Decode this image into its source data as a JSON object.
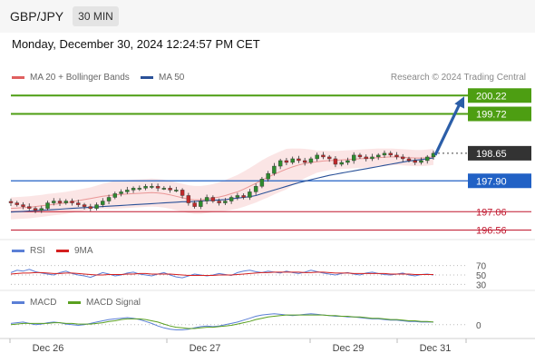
{
  "header": {
    "pair": "GBP/JPY",
    "timeframe": "30 MIN"
  },
  "datetime": "Monday, December 30, 2024 12:24:57 PM CET",
  "copyright": "Research © 2024 Trading Central",
  "colors": {
    "resistance": "#4d9e12",
    "pivot": "#2161c5",
    "support": "#c0162d",
    "current": "#333333",
    "arrow": "#2b5ea8",
    "ma50": "#2a5198",
    "ma20": "#e06060",
    "bands_fill": "#fadcdc",
    "rsi": "#5b7fd6",
    "rsi_ma": "#d42020",
    "macd": "#5b7fd6",
    "macd_signal": "#5aa020",
    "candle_up": "#2e8b2e",
    "candle_down": "#c0292b"
  },
  "chart_data": [
    {
      "type": "candlestick",
      "legend": {
        "ma20_label": "MA 20 + Bollinger Bands",
        "ma50_label": "MA 50"
      },
      "price_range": [
        196.45,
        200.35
      ],
      "levels": [
        {
          "value": "200.22",
          "price": 200.22,
          "role": "resistance"
        },
        {
          "value": "199.72",
          "price": 199.72,
          "role": "resistance"
        },
        {
          "value": "198.65",
          "price": 198.65,
          "role": "current"
        },
        {
          "value": "197.90",
          "price": 197.9,
          "role": "pivot"
        },
        {
          "value": "197.06",
          "price": 197.06,
          "role": "support"
        },
        {
          "value": "196.56",
          "price": 196.56,
          "role": "support"
        }
      ],
      "close": [
        197.3,
        197.25,
        197.2,
        197.15,
        197.1,
        197.15,
        197.3,
        197.35,
        197.3,
        197.35,
        197.3,
        197.25,
        197.2,
        197.15,
        197.25,
        197.35,
        197.45,
        197.55,
        197.6,
        197.65,
        197.7,
        197.7,
        197.75,
        197.75,
        197.7,
        197.7,
        197.65,
        197.65,
        197.5,
        197.3,
        197.2,
        197.35,
        197.45,
        197.35,
        197.3,
        197.35,
        197.45,
        197.5,
        197.45,
        197.6,
        197.75,
        197.95,
        198.1,
        198.3,
        198.45,
        198.4,
        198.5,
        198.45,
        198.4,
        198.5,
        198.6,
        198.55,
        198.5,
        198.35,
        198.4,
        198.45,
        198.6,
        198.55,
        198.5,
        198.55,
        198.6,
        198.65,
        198.6,
        198.55,
        198.5,
        198.45,
        198.4,
        198.45,
        198.55,
        198.65
      ],
      "ma50": [
        197.05,
        197.06,
        197.07,
        197.08,
        197.09,
        197.1,
        197.11,
        197.12,
        197.13,
        197.14,
        197.15,
        197.16,
        197.17,
        197.18,
        197.19,
        197.2,
        197.21,
        197.22,
        197.23,
        197.24,
        197.25,
        197.26,
        197.27,
        197.28,
        197.29,
        197.3,
        197.31,
        197.32,
        197.33,
        197.33,
        197.34,
        197.35,
        197.36,
        197.37,
        197.38,
        197.39,
        197.41,
        197.43,
        197.45,
        197.47,
        197.5,
        197.55,
        197.6,
        197.65,
        197.7,
        197.75,
        197.8,
        197.85,
        197.89,
        197.93,
        197.97,
        198.01,
        198.05,
        198.08,
        198.11,
        198.14,
        198.17,
        198.2,
        198.23,
        198.26,
        198.29,
        198.32,
        198.35,
        198.38,
        198.41,
        198.44,
        198.46,
        198.48,
        198.5,
        198.52
      ],
      "ma20": [
        197.15,
        197.16,
        197.17,
        197.18,
        197.2,
        197.22,
        197.24,
        197.26,
        197.28,
        197.3,
        197.33,
        197.36,
        197.39,
        197.42,
        197.45,
        197.48,
        197.5,
        197.52,
        197.53,
        197.54,
        197.55,
        197.56,
        197.57,
        197.58,
        197.57,
        197.55,
        197.52,
        197.48,
        197.44,
        197.4,
        197.38,
        197.38,
        197.4,
        197.43,
        197.46,
        197.5,
        197.55,
        197.6,
        197.67,
        197.75,
        197.83,
        197.92,
        198.0,
        198.08,
        198.15,
        198.22,
        198.28,
        198.33,
        198.37,
        198.4,
        198.42,
        198.44,
        198.45,
        198.46,
        198.47,
        198.48,
        198.49,
        198.5,
        198.51,
        198.52,
        198.53,
        198.54,
        198.55,
        198.55,
        198.54,
        198.53,
        198.52,
        198.52,
        198.53,
        198.55
      ],
      "band_width": [
        0.3,
        0.3,
        0.3,
        0.3,
        0.3,
        0.3,
        0.3,
        0.3,
        0.3,
        0.3,
        0.3,
        0.3,
        0.3,
        0.3,
        0.32,
        0.34,
        0.36,
        0.38,
        0.38,
        0.38,
        0.38,
        0.38,
        0.38,
        0.38,
        0.38,
        0.38,
        0.38,
        0.38,
        0.38,
        0.38,
        0.38,
        0.38,
        0.38,
        0.38,
        0.4,
        0.42,
        0.44,
        0.46,
        0.48,
        0.5,
        0.52,
        0.54,
        0.55,
        0.55,
        0.55,
        0.55,
        0.5,
        0.45,
        0.4,
        0.35,
        0.3,
        0.28,
        0.26,
        0.25,
        0.25,
        0.25,
        0.25,
        0.25,
        0.25,
        0.25,
        0.25,
        0.24,
        0.23,
        0.22,
        0.22,
        0.22,
        0.22,
        0.22,
        0.22,
        0.22
      ],
      "forecast_arrow": {
        "from_price": 198.65,
        "to_price": 200.22
      },
      "x_ticks": [
        "Dec 26",
        "Dec 27",
        "Dec 29",
        "Dec 31"
      ]
    },
    {
      "type": "line",
      "legend": {
        "rsi_label": "RSI",
        "ma_label": "9MA"
      },
      "ylim": [
        25,
        75
      ],
      "ticks": [
        "70",
        "50",
        "30"
      ],
      "rsi": [
        55,
        60,
        58,
        62,
        57,
        54,
        52,
        50,
        55,
        58,
        53,
        50,
        48,
        45,
        50,
        55,
        52,
        48,
        50,
        54,
        56,
        52,
        50,
        48,
        52,
        55,
        50,
        46,
        44,
        48,
        52,
        50,
        48,
        50,
        53,
        51,
        49,
        55,
        58,
        60,
        57,
        55,
        58,
        56,
        54,
        58,
        55,
        53,
        56,
        60,
        57,
        54,
        52,
        50,
        53,
        55,
        52,
        50,
        54,
        56,
        53,
        51,
        50,
        52,
        54,
        50,
        48,
        51,
        52,
        50
      ],
      "rsi_ma": [
        52,
        53,
        54,
        54,
        55,
        55,
        54,
        53,
        53,
        54,
        54,
        53,
        52,
        51,
        50,
        50,
        51,
        51,
        51,
        52,
        52,
        53,
        53,
        52,
        52,
        52,
        52,
        51,
        50,
        49,
        49,
        49,
        49,
        49,
        50,
        50,
        50,
        51,
        52,
        53,
        54,
        55,
        55,
        56,
        56,
        56,
        56,
        56,
        55,
        55,
        56,
        56,
        55,
        54,
        54,
        54,
        53,
        53,
        53,
        53,
        53,
        53,
        52,
        52,
        52,
        52,
        51,
        51,
        51,
        51
      ]
    },
    {
      "type": "line",
      "legend": {
        "macd_label": "MACD",
        "signal_label": "MACD Signal"
      },
      "ylim": [
        -0.2,
        0.25
      ],
      "ticks": [
        "0"
      ],
      "macd": [
        0.02,
        0.03,
        0.04,
        0.02,
        0.0,
        0.01,
        0.03,
        0.04,
        0.03,
        0.01,
        0.0,
        -0.01,
        0.0,
        0.02,
        0.04,
        0.06,
        0.08,
        0.09,
        0.1,
        0.11,
        0.1,
        0.08,
        0.05,
        0.02,
        -0.02,
        -0.05,
        -0.07,
        -0.08,
        -0.08,
        -0.07,
        -0.05,
        -0.03,
        -0.02,
        -0.03,
        -0.02,
        0.0,
        0.02,
        0.04,
        0.07,
        0.1,
        0.13,
        0.15,
        0.16,
        0.17,
        0.16,
        0.15,
        0.14,
        0.15,
        0.16,
        0.17,
        0.16,
        0.15,
        0.14,
        0.13,
        0.13,
        0.12,
        0.12,
        0.11,
        0.1,
        0.09,
        0.09,
        0.08,
        0.07,
        0.07,
        0.06,
        0.05,
        0.05,
        0.04,
        0.04,
        0.04
      ],
      "signal": [
        0.0,
        0.01,
        0.02,
        0.02,
        0.02,
        0.02,
        0.02,
        0.03,
        0.03,
        0.02,
        0.02,
        0.01,
        0.01,
        0.01,
        0.02,
        0.03,
        0.05,
        0.06,
        0.08,
        0.09,
        0.09,
        0.09,
        0.08,
        0.06,
        0.04,
        0.01,
        -0.02,
        -0.04,
        -0.05,
        -0.06,
        -0.06,
        -0.05,
        -0.04,
        -0.04,
        -0.03,
        -0.02,
        -0.01,
        0.01,
        0.03,
        0.05,
        0.08,
        0.1,
        0.12,
        0.13,
        0.14,
        0.15,
        0.15,
        0.15,
        0.15,
        0.15,
        0.15,
        0.15,
        0.14,
        0.14,
        0.13,
        0.13,
        0.12,
        0.12,
        0.11,
        0.1,
        0.1,
        0.09,
        0.08,
        0.08,
        0.07,
        0.06,
        0.06,
        0.05,
        0.05,
        0.04
      ]
    }
  ]
}
